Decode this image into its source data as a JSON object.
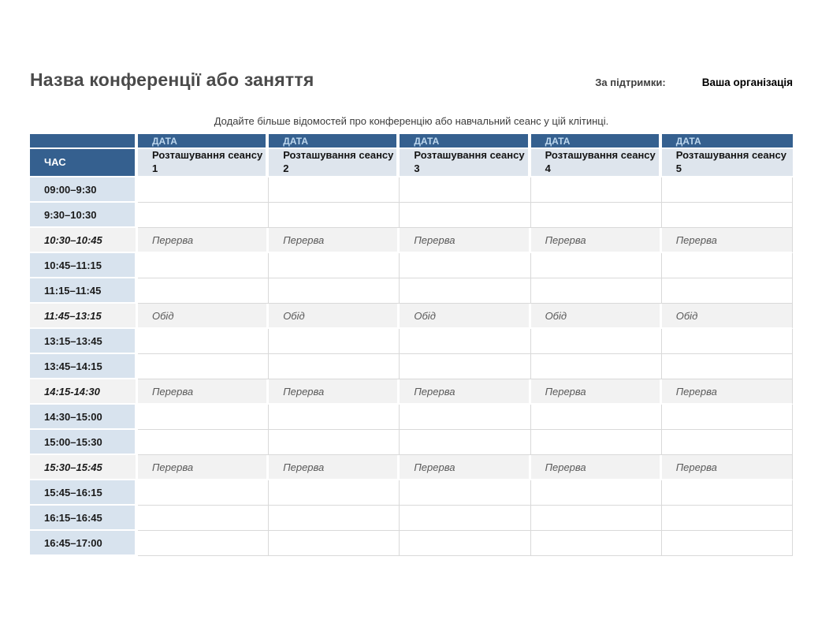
{
  "header": {
    "title": "Назва конференції або заняття",
    "sponsor_label": "За підтримки:",
    "sponsor_name": "Ваша організація",
    "subtitle": "Додайте більше відомостей про конференцію або навчальний сеанс у цій клітинці."
  },
  "table": {
    "time_header": "ЧАС",
    "date_header": "ДАТА",
    "columns": [
      "Розташування сеансу 1",
      "Розташування сеансу 2",
      "Розташування сеансу 3",
      "Розташування сеансу 4",
      "Розташування сеансу 5"
    ],
    "rows": [
      {
        "time": "09:00–9:30",
        "type": "normal",
        "label": ""
      },
      {
        "time": "9:30–10:30",
        "type": "normal",
        "label": ""
      },
      {
        "time": "10:30–10:45",
        "type": "break",
        "label": "Перерва"
      },
      {
        "time": "10:45–11:15",
        "type": "normal",
        "label": ""
      },
      {
        "time": "11:15–11:45",
        "type": "normal",
        "label": ""
      },
      {
        "time": "11:45–13:15",
        "type": "break",
        "label": "Обід"
      },
      {
        "time": "13:15–13:45",
        "type": "normal",
        "label": ""
      },
      {
        "time": "13:45–14:15",
        "type": "normal",
        "label": ""
      },
      {
        "time": "14:15-14:30",
        "type": "break",
        "label": "Перерва"
      },
      {
        "time": "14:30–15:00",
        "type": "normal",
        "label": ""
      },
      {
        "time": "15:00–15:30",
        "type": "normal",
        "label": ""
      },
      {
        "time": "15:30–15:45",
        "type": "break",
        "label": "Перерва"
      },
      {
        "time": "15:45–16:15",
        "type": "normal",
        "label": ""
      },
      {
        "time": "16:15–16:45",
        "type": "normal",
        "label": ""
      },
      {
        "time": "16:45–17:00",
        "type": "normal",
        "label": ""
      }
    ]
  },
  "colors": {
    "header_blue": "#35608F",
    "date_text": "#BDD7EE",
    "time_col_bg": "#D8E3EE",
    "subheader_bg": "#DEE5ED",
    "break_bg": "#F2F2F2",
    "grid": "#D9D9D9",
    "muted_text": "#595959",
    "title_text": "#4A4A4A"
  }
}
